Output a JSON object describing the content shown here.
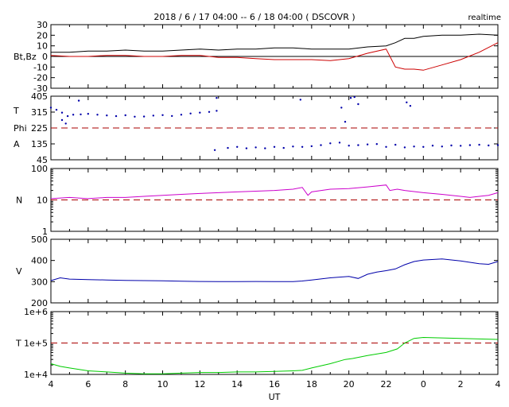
{
  "title": "2018 / 6 / 17   04:00 --  6 / 18  04:00 ( DSCOVR )",
  "mode_label": "realtime",
  "x_axis": {
    "label": "UT",
    "ticks": [
      "4",
      "6",
      "8",
      "10",
      "12",
      "14",
      "16",
      "18",
      "20",
      "22",
      "0",
      "2",
      "4"
    ]
  },
  "chart_data": [
    {
      "type": "line",
      "name": "magnetic-field",
      "ylabel": "Bt,Bz",
      "ylim": [
        -30,
        30
      ],
      "yticks": [
        "30",
        "20",
        "10",
        "0",
        "-10",
        "-20",
        "-30"
      ],
      "reference_line": 0,
      "x": [
        4,
        5,
        6,
        7,
        8,
        9,
        10,
        11,
        12,
        13,
        14,
        15,
        16,
        17,
        18,
        19,
        20,
        21,
        22,
        22.5,
        23,
        23.5,
        24,
        25,
        26,
        27,
        28
      ],
      "series": [
        {
          "name": "Bt",
          "color": "#000000",
          "values": [
            4,
            4,
            5,
            5,
            6,
            5,
            5,
            6,
            7,
            6,
            7,
            7,
            8,
            8,
            7,
            7,
            7,
            9,
            10,
            13,
            17,
            17,
            19,
            20,
            20,
            21,
            20
          ]
        },
        {
          "name": "Bz",
          "color": "#cc0000",
          "values": [
            1,
            0,
            0,
            1,
            1,
            0,
            0,
            1,
            1,
            -1,
            -1,
            -2,
            -3,
            -3,
            -3,
            -4,
            -2,
            3,
            7,
            -10,
            -12,
            -12,
            -13,
            -8,
            -3,
            4,
            13
          ]
        }
      ]
    },
    {
      "type": "scatter",
      "name": "phi-angle",
      "ylabel": "Phi",
      "side_labels": [
        "T",
        "Phi",
        "A"
      ],
      "ylim": [
        45,
        405
      ],
      "yticks": [
        "405",
        "315",
        "225",
        "135",
        "45"
      ],
      "reference_line": 225,
      "series": [
        {
          "name": "Phi-away",
          "color": "#0000aa",
          "x": [
            4.0,
            4.3,
            4.6,
            4.9,
            5.2,
            5.6,
            6.0,
            6.5,
            7.0,
            7.5,
            8.0,
            8.5,
            9.0,
            9.5,
            10.0,
            10.5,
            11.0,
            11.5,
            12.0,
            12.5,
            12.9
          ],
          "y": [
            340,
            328,
            312,
            292,
            300,
            302,
            305,
            300,
            296,
            292,
            297,
            289,
            290,
            295,
            298,
            293,
            300,
            307,
            312,
            316,
            322
          ]
        },
        {
          "name": "Phi-toward",
          "color": "#0000aa",
          "x": [
            12.8,
            13.5,
            14.0,
            14.5,
            15.0,
            15.5,
            16.0,
            16.5,
            17.0,
            17.5,
            18.0,
            18.5,
            19.0,
            19.5,
            20.0,
            20.5,
            21.0,
            21.5,
            22.0,
            22.5,
            23.0,
            23.5,
            24.0,
            24.5,
            25.0,
            25.5,
            26.0,
            26.5,
            27.0,
            27.5,
            28.0
          ],
          "y": [
            100,
            112,
            118,
            110,
            115,
            110,
            118,
            112,
            120,
            118,
            122,
            128,
            138,
            142,
            125,
            128,
            132,
            134,
            118,
            130,
            115,
            120,
            118,
            125,
            120,
            126,
            124,
            128,
            130,
            126,
            128
          ]
        },
        {
          "name": "Phi-scattered",
          "color": "#0000aa",
          "x": [
            4.6,
            4.8,
            5.5,
            12.9,
            17.4,
            19.6,
            19.8,
            20.1,
            20.3,
            20.5,
            23.1,
            23.3
          ],
          "y": [
            270,
            250,
            380,
            395,
            385,
            340,
            260,
            395,
            400,
            360,
            370,
            350
          ]
        }
      ]
    },
    {
      "type": "line",
      "name": "density",
      "ylabel": "N",
      "scale": "log",
      "ylim": [
        1,
        100
      ],
      "yticks": [
        "100",
        "10",
        "1"
      ],
      "reference_line": 10,
      "x": [
        4,
        5,
        6,
        7,
        8,
        9,
        10,
        11,
        12,
        13,
        14,
        15,
        16,
        17,
        17.5,
        17.8,
        18,
        19,
        20,
        21,
        22,
        22.2,
        22.6,
        23,
        24,
        25,
        26,
        26.5,
        27,
        27.5,
        28
      ],
      "series": [
        {
          "name": "N",
          "color": "#cc00cc",
          "values": [
            11,
            12,
            11,
            12,
            12,
            13,
            14,
            15,
            16,
            17,
            18,
            19,
            20,
            22,
            25,
            14,
            18,
            22,
            23,
            26,
            30,
            20,
            22,
            20,
            17,
            15,
            13,
            12,
            13,
            14,
            17
          ]
        }
      ]
    },
    {
      "type": "line",
      "name": "velocity",
      "ylabel": "V",
      "ylim": [
        200,
        500
      ],
      "yticks": [
        "500",
        "400",
        "300",
        "200"
      ],
      "x": [
        4,
        4.5,
        5,
        6,
        7,
        8,
        9,
        10,
        11,
        12,
        13,
        14,
        15,
        16,
        17,
        17.5,
        18,
        19,
        20,
        20.5,
        21,
        21.5,
        22,
        22.5,
        23,
        23.5,
        24,
        25,
        26,
        27,
        27.5,
        28
      ],
      "series": [
        {
          "name": "V",
          "color": "#0000aa",
          "values": [
            305,
            318,
            312,
            310,
            308,
            306,
            305,
            304,
            302,
            301,
            300,
            300,
            301,
            300,
            300,
            303,
            308,
            318,
            325,
            315,
            335,
            345,
            352,
            360,
            380,
            395,
            402,
            407,
            398,
            385,
            382,
            395
          ]
        }
      ]
    },
    {
      "type": "line",
      "name": "temperature",
      "ylabel": "T",
      "scale": "log",
      "ylim": [
        10000,
        1000000
      ],
      "yticks": [
        "1e+6",
        "1e+5",
        "1e+4"
      ],
      "reference_line": 100000,
      "x": [
        4,
        4.5,
        5,
        6,
        7,
        8,
        9,
        10,
        11,
        12,
        13,
        14,
        15,
        16,
        17,
        17.5,
        18,
        19,
        19.8,
        20.2,
        21,
        22,
        22.6,
        23,
        23.5,
        24,
        25,
        26,
        27,
        28
      ],
      "series": [
        {
          "name": "T",
          "color": "#00cc00",
          "values": [
            22000,
            18000,
            16000,
            13000,
            12000,
            11000,
            10500,
            10500,
            11000,
            11500,
            11500,
            12000,
            12000,
            12500,
            13000,
            13500,
            16000,
            22000,
            30000,
            32000,
            40000,
            50000,
            65000,
            100000,
            140000,
            150000,
            145000,
            140000,
            135000,
            130000
          ]
        }
      ]
    }
  ]
}
